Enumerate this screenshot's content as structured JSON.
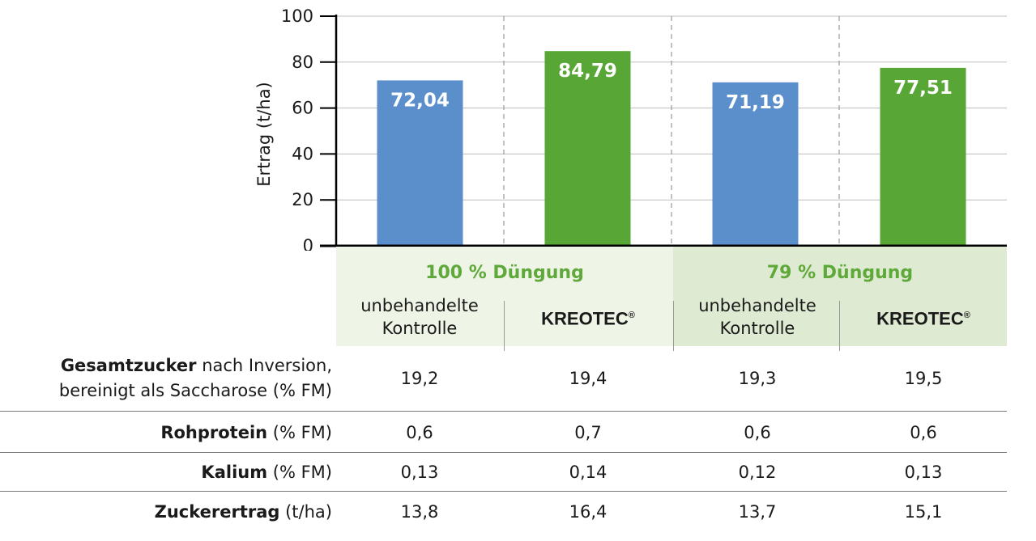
{
  "chart_data": {
    "type": "bar",
    "ylabel": "Ertrag (t/ha)",
    "ylim": [
      0,
      100
    ],
    "yticks": [
      "0",
      "20",
      "40",
      "60",
      "80",
      "100"
    ],
    "grid": true,
    "groups": [
      {
        "title": "100 % Düngung",
        "bars": [
          {
            "category_line1": "unbehandelte",
            "category_line2": "Kontrolle",
            "value": 72.04,
            "label": "72,04",
            "color": "#5b8fcc"
          },
          {
            "category_line1": "KREOTEC",
            "category_line2": "",
            "value": 84.79,
            "label": "84,79",
            "color": "#57a636"
          }
        ]
      },
      {
        "title": "79 % Düngung",
        "bars": [
          {
            "category_line1": "unbehandelte",
            "category_line2": "Kontrolle",
            "value": 71.19,
            "label": "71,19",
            "color": "#5b8fcc"
          },
          {
            "category_line1": "KREOTEC",
            "category_line2": "",
            "value": 77.51,
            "label": "77,51",
            "color": "#57a636"
          }
        ]
      }
    ],
    "registered_mark": "®"
  },
  "table": {
    "rows": [
      {
        "label_bold": "Gesamtzucker",
        "label_rest": " nach Inversion,",
        "label_line2": "bereinigt als Saccharose (% FM)",
        "values": [
          "19,2",
          "19,4",
          "19,3",
          "19,5"
        ]
      },
      {
        "label_bold": "Rohprotein",
        "label_rest": " (% FM)",
        "label_line2": "",
        "values": [
          "0,6",
          "0,7",
          "0,6",
          "0,6"
        ]
      },
      {
        "label_bold": "Kalium",
        "label_rest": " (% FM)",
        "label_line2": "",
        "values": [
          "0,13",
          "0,14",
          "0,12",
          "0,13"
        ]
      },
      {
        "label_bold": "Zuckerertrag",
        "label_rest": " (t/ha)",
        "label_line2": "",
        "values": [
          "13,8",
          "16,4",
          "13,7",
          "15,1"
        ]
      }
    ]
  },
  "colors": {
    "blue_bar": "#5b8fcc",
    "green_bar": "#57a636",
    "group_title": "#5fa83a",
    "band_light": "#eef4e6",
    "band_dark": "#dfead2"
  }
}
